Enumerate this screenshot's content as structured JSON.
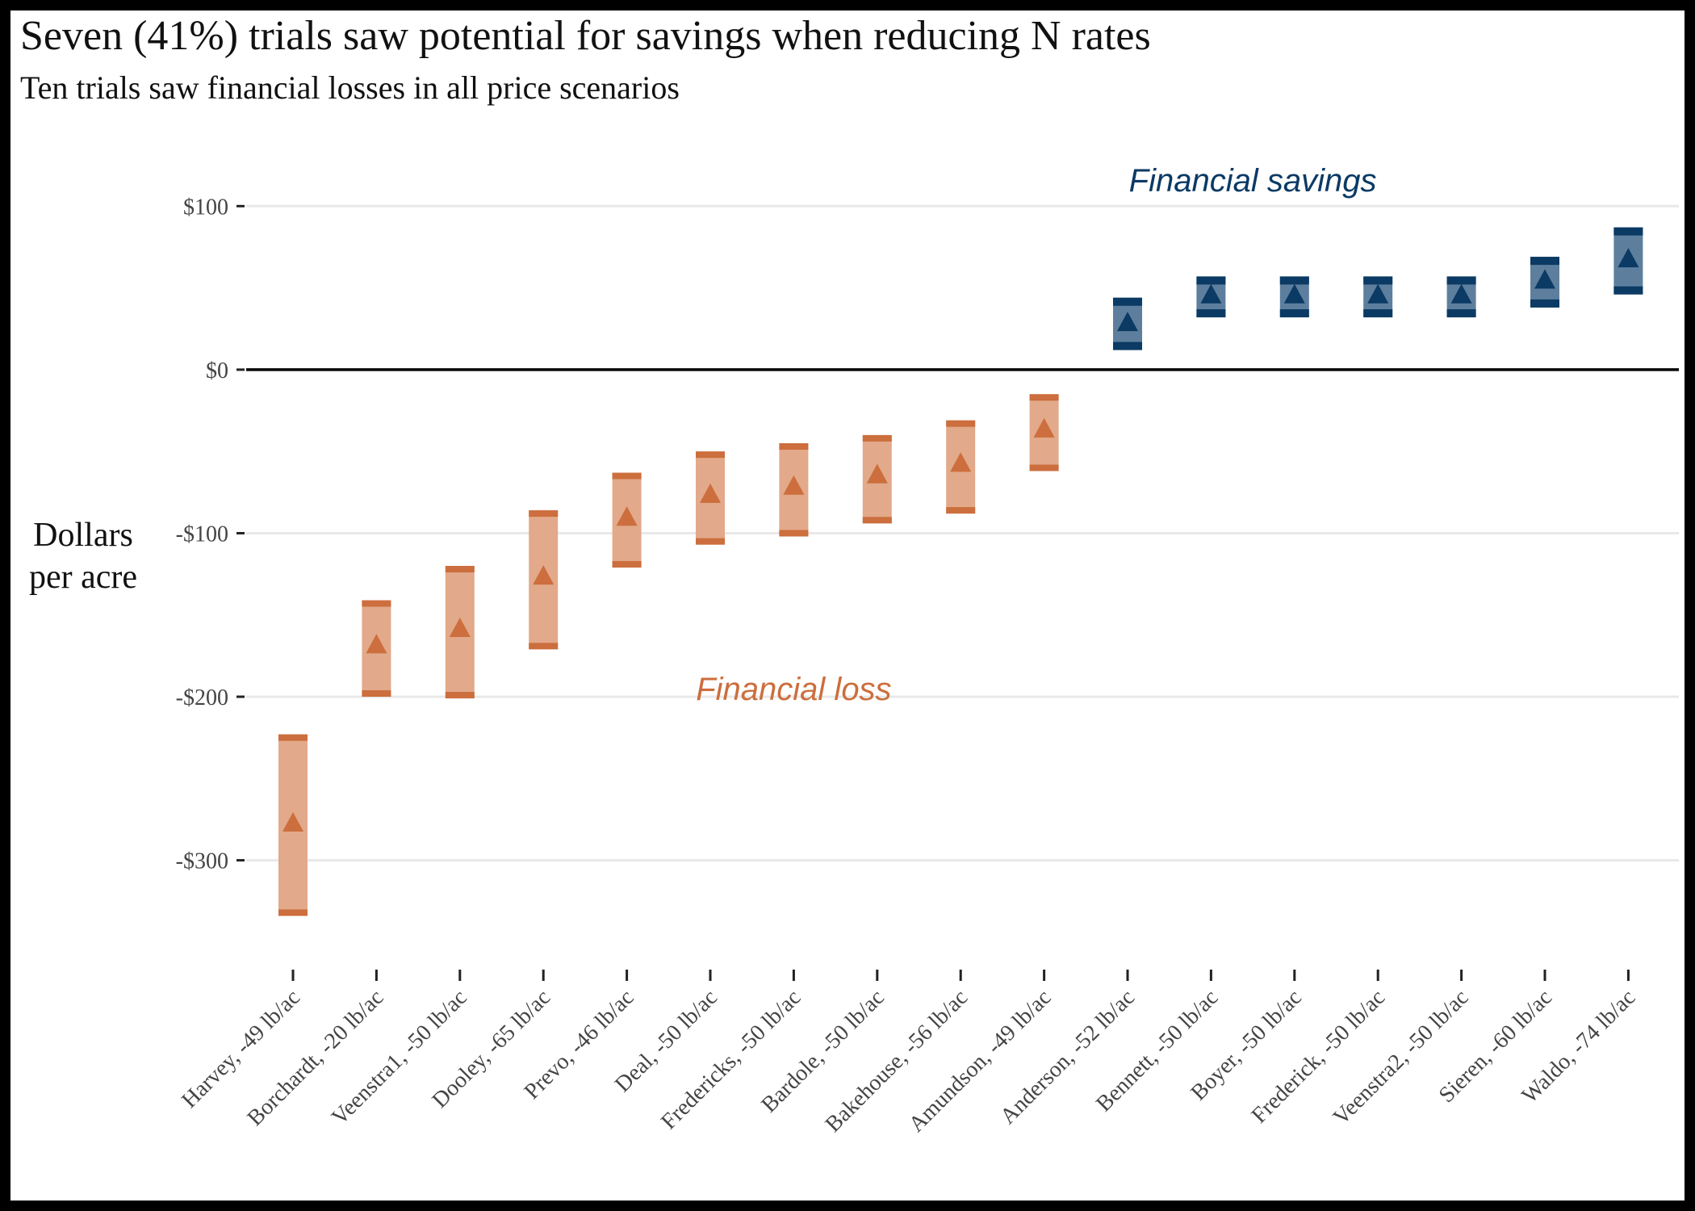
{
  "chart_data": {
    "type": "range",
    "title": "Seven (41%) trials saw potential for savings when reducing N rates",
    "subtitle": "Ten trials saw financial losses in all price scenarios",
    "ylabel_lines": [
      "Dollars",
      "per acre"
    ],
    "xlabel": "",
    "ylim": [
      -355,
      112
    ],
    "yticks": [
      {
        "value": 100,
        "label": "$100"
      },
      {
        "value": 0,
        "label": "$0"
      },
      {
        "value": -100,
        "label": "-$100"
      },
      {
        "value": -200,
        "label": "-$200"
      },
      {
        "value": -300,
        "label": "-$300"
      }
    ],
    "grid": "horizontal",
    "categories": [
      "Harvey, -49 lb/ac",
      "Borchardt, -20 lb/ac",
      "Veenstra1, -50 lb/ac",
      "Dooley, -65 lb/ac",
      "Prevo, -46 lb/ac",
      "Deal, -50 lb/ac",
      "Fredericks, -50 lb/ac",
      "Bardole, -50 lb/ac",
      "Bakehouse, -56 lb/ac",
      "Amundson, -49 lb/ac",
      "Anderson, -52 lb/ac",
      "Bennett, -50 lb/ac",
      "Boyer, -50 lb/ac",
      "Frederick, -50 lb/ac",
      "Veenstra2, -50 lb/ac",
      "Sieren, -60 lb/ac",
      "Waldo, -74 lb/ac"
    ],
    "high": [
      -223,
      -141,
      -120,
      -86,
      -63,
      -50,
      -45,
      -40,
      -31,
      -15,
      44,
      57,
      57,
      57,
      57,
      69,
      87
    ],
    "mid": [
      -277,
      -168,
      -158,
      -126,
      -90,
      -76,
      -71,
      -64,
      -57,
      -36,
      29,
      46,
      46,
      46,
      46,
      55,
      68
    ],
    "low": [
      -334,
      -200,
      -201,
      -171,
      -121,
      -107,
      -102,
      -94,
      -88,
      -62,
      12,
      32,
      32,
      32,
      32,
      38,
      46
    ],
    "colors": {
      "loss": "#cc6e3d",
      "loss_fill": "#e2a98a",
      "savings": "#0b3a64",
      "savings_fill": "#5d7f9d",
      "grid": "#e8e8e8"
    },
    "annotations": [
      {
        "text": "Financial savings",
        "x_category": 11.5,
        "y": 109,
        "color": "#0b3a64"
      },
      {
        "text": "Financial loss",
        "x_category": 6.0,
        "y": -202,
        "color": "#cc6e3d"
      }
    ]
  }
}
